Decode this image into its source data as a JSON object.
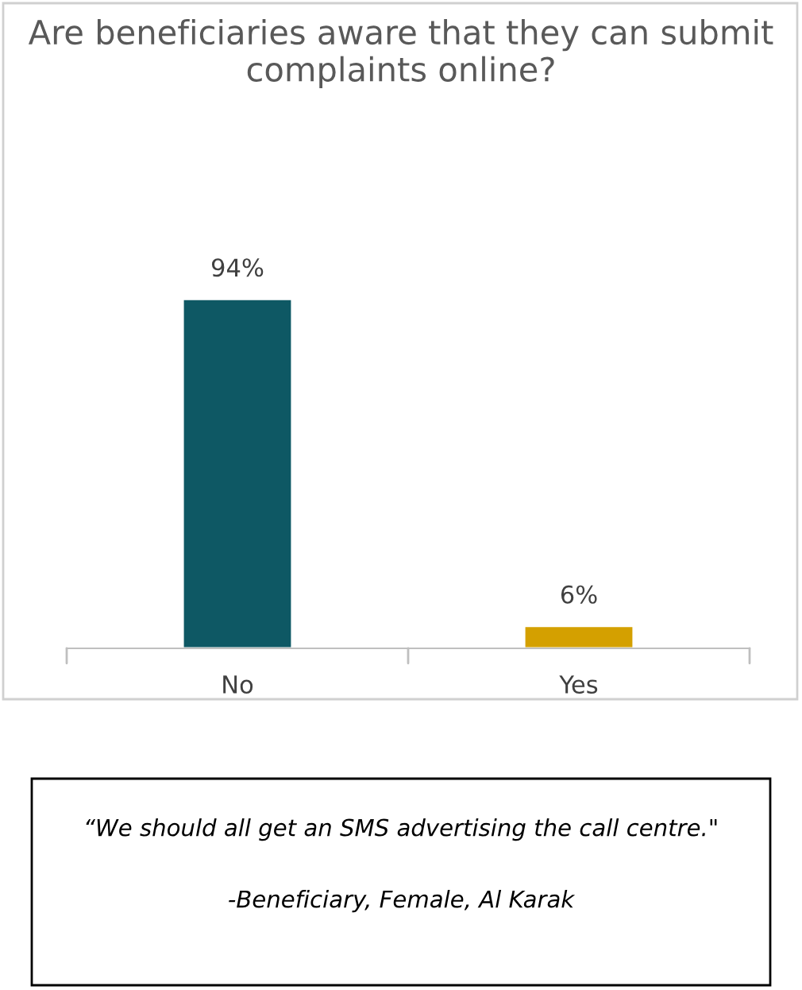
{
  "chart_data": {
    "type": "bar",
    "title": "Are beneficiaries aware that they can submit complaints online?",
    "categories": [
      "No",
      "Yes"
    ],
    "values": [
      94,
      6
    ],
    "colors": [
      "#0e5864",
      "#d4a000"
    ],
    "value_labels": [
      "94%",
      "6%"
    ],
    "grid": false,
    "legend": false,
    "annotations": [
      "“We should all get an SMS advertising the call centre.\"",
      "-Beneficiary, Female, Al Karak"
    ]
  }
}
